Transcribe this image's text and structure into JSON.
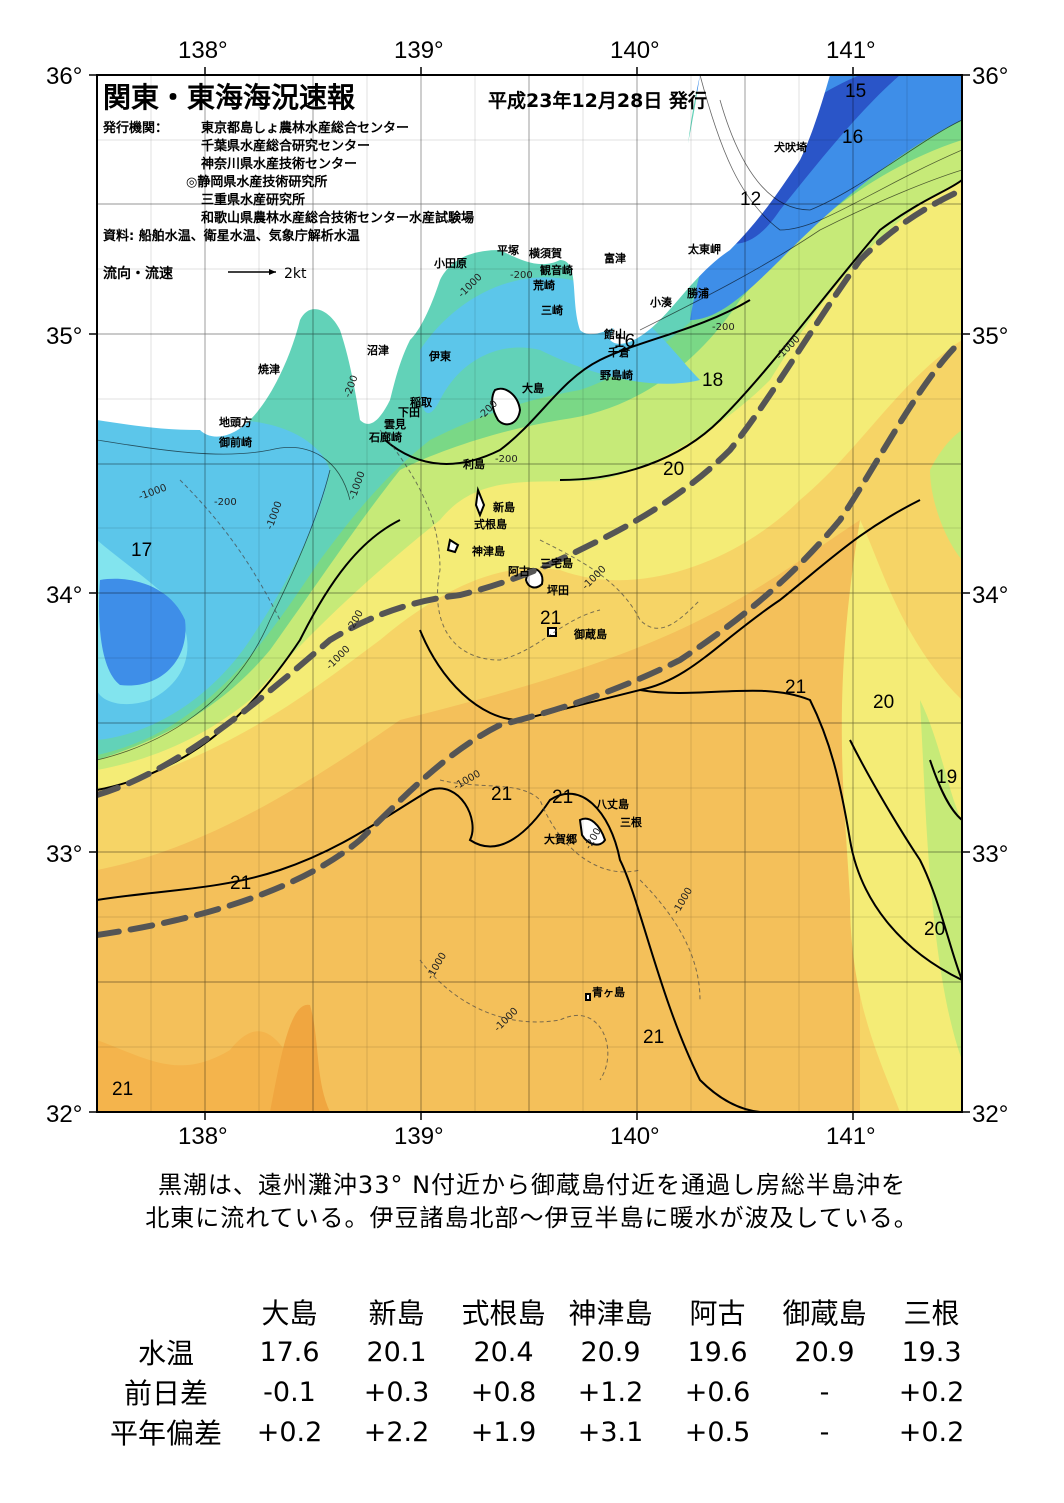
{
  "header": {
    "title": "関東・東海海況速報",
    "date_label": "平成23年12月28日 発行",
    "publisher_label": "発行機関：",
    "publishers": [
      "東京都島しょ農林水産総合センター",
      "千葉県水産総合研究センター",
      "神奈川県水産技術センター",
      "◎静岡県水産技術研究所",
      "三重県水産研究所",
      "和歌山県農林水産総合技術センター水産試験場"
    ],
    "sources": "資料: 船舶水温、衛星水温、気象庁解析水温",
    "flow_legend_label": "流向・流速",
    "flow_legend_scale": "2kt"
  },
  "axes": {
    "lon_labels": [
      "138°",
      "139°",
      "140°",
      "141°"
    ],
    "lat_labels": [
      "36°",
      "35°",
      "34°",
      "33°",
      "32°"
    ],
    "lon_range": [
      137.5,
      141.5
    ],
    "lat_range": [
      32,
      36
    ]
  },
  "contour_labels": {
    "temperature": [
      "15",
      "16",
      "12",
      "16",
      "18",
      "20",
      "17",
      "21",
      "21",
      "20",
      "19",
      "21",
      "21",
      "21",
      "20",
      "21",
      "21"
    ],
    "depth": [
      "-200",
      "-1000",
      "-200",
      "-200",
      "-200",
      "-1000",
      "-200",
      "-1000",
      "-1000",
      "-200",
      "-1000",
      "-1000",
      "-1000",
      "-1000",
      "-200",
      "-1000",
      "-1000",
      "-200",
      "-1000"
    ]
  },
  "place_names": [
    "犬吠埼",
    "太東岬",
    "勝浦",
    "小湊",
    "富津",
    "館山",
    "千倉",
    "野島崎",
    "小田原",
    "平塚",
    "横須賀",
    "観音崎",
    "荒崎",
    "三崎",
    "沼津",
    "伊東",
    "焼津",
    "稲取",
    "下田",
    "雲見",
    "石廊崎",
    "地頭方",
    "御前崎",
    "大島",
    "利島",
    "新島",
    "式根島",
    "神津島",
    "三宅島",
    "阿古",
    "坪田",
    "御蔵島",
    "八丈島",
    "三根",
    "大賀郷",
    "青ヶ島"
  ],
  "colors": {
    "coldest": "#2a55c8",
    "cold": "#3e8ee8",
    "cool": "#5cc6ea",
    "cyan": "#82e4ee",
    "teal": "#62d2b8",
    "green": "#7ad886",
    "light_green": "#c6ea78",
    "yellow": "#f4ec76",
    "light_orange": "#f6d466",
    "orange": "#f4b44c",
    "kuroshio_axis": "#555555"
  },
  "summary": [
    "黒潮は、遠州灘沖33° N付近から御蔵島付近を通過し房総半島沖を",
    "北東に流れている。伊豆諸島北部～伊豆半島に暖水が波及している。"
  ],
  "table": {
    "columns": [
      "大島",
      "新島",
      "式根島",
      "神津島",
      "阿古",
      "御蔵島",
      "三根"
    ],
    "rows": [
      {
        "label": "水温",
        "values": [
          "17.6",
          "20.1",
          "20.4",
          "20.9",
          "19.6",
          "20.9",
          "19.3"
        ]
      },
      {
        "label": "前日差",
        "values": [
          "-0.1",
          "+0.3",
          "+0.8",
          "+1.2",
          "+0.6",
          "-",
          "+0.2"
        ]
      },
      {
        "label": "平年偏差",
        "values": [
          "+0.2",
          "+2.2",
          "+1.9",
          "+3.1",
          "+0.5",
          "-",
          "+0.2"
        ]
      }
    ]
  }
}
